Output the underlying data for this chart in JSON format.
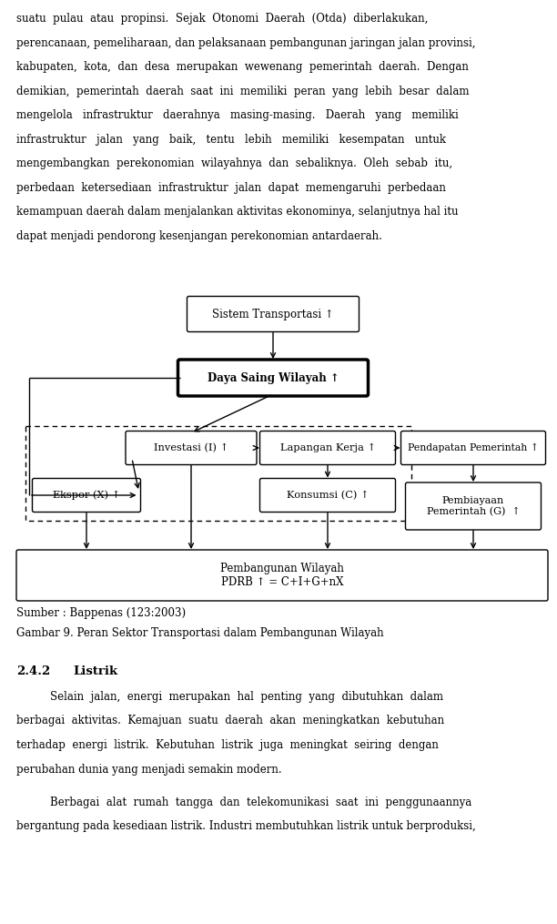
{
  "background_color": "#ffffff",
  "page_width": 6.12,
  "page_height": 10.15,
  "top_lines": [
    "suatu  pulau  atau  propinsi.  Sejak  Otonomi  Daerah  (Otda)  diberlakukan,",
    "perencanaan, pemeliharaan, dan pelaksanaan pembangunan jaringan jalan provinsi,",
    "kabupaten,  kota,  dan  desa  merupakan  wewenang  pemerintah  daerah.  Dengan",
    "demikian,  pemerintah  daerah  saat  ini  memiliki  peran  yang  lebih  besar  dalam",
    "mengelola   infrastruktur   daerahnya   masing-masing.   Daerah   yang   memiliki",
    "infrastruktur   jalan   yang   baik,   tentu   lebih   memiliki   kesempatan   untuk",
    "mengembangkan  perekonomian  wilayahnya  dan  sebaliknya.  Oleh  sebab  itu,",
    "perbedaan  ketersediaan  infrastruktur  jalan  dapat  memengaruhi  perbedaan",
    "kemampuan daerah dalam menjalankan aktivitas ekonominya, selanjutnya hal itu",
    "dapat menjadi pendorong kesenjangan perekonomian antardaerah."
  ],
  "sumber_text": "Sumber : Bappenas (123:2003)",
  "caption_text": "Gambar 9. Peran Sektor Transportasi dalam Pembangunan Wilayah",
  "section_num": "2.4.2",
  "section_title": "Listrik",
  "para1_lines": [
    "Selain  jalan,  energi  merupakan  hal  penting  yang  dibutuhkan  dalam",
    "berbagai  aktivitas.  Kemajuan  suatu  daerah  akan  meningkatkan  kebutuhan",
    "terhadap  energi  listrik.  Kebutuhan  listrik  juga  meningkat  seiring  dengan",
    "perubahan dunia yang menjadi semakin modern."
  ],
  "para2_lines": [
    "Berbagai  alat  rumah  tangga  dan  telekomunikasi  saat  ini  penggunaannya",
    "bergantung pada kesediaan listrik. Industri membutuhkan listrik untuk berproduksi,"
  ]
}
